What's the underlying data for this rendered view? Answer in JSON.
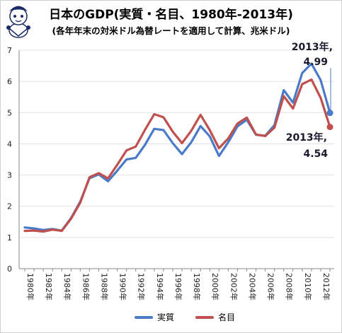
{
  "title": "日本のGDP(実質・名目、1980年-2013年)",
  "subtitle": "(各年年末の対米ドル為替レートを適用して計算、兆米ドル)",
  "colors": {
    "real": "#4a7bc8",
    "nominal": "#c0504d",
    "grid": "#e0e0e0",
    "axis": "#888888"
  },
  "chart_data": {
    "type": "line",
    "x": [
      1980,
      1981,
      1982,
      1983,
      1984,
      1985,
      1986,
      1987,
      1988,
      1989,
      1990,
      1991,
      1992,
      1993,
      1994,
      1995,
      1996,
      1997,
      1998,
      1999,
      2000,
      2001,
      2002,
      2003,
      2004,
      2005,
      2006,
      2007,
      2008,
      2009,
      2010,
      2011,
      2012,
      2013
    ],
    "x_tick_labels": [
      "1980年",
      "1982年",
      "1984年",
      "1986年",
      "1988年",
      "1990年",
      "1992年",
      "1994年",
      "1996年",
      "1998年",
      "2000年",
      "2002年",
      "2004年",
      "2006年",
      "2008年",
      "2010年",
      "2012年"
    ],
    "ylim": [
      0,
      7
    ],
    "y_ticks": [
      0,
      1,
      2,
      3,
      4,
      5,
      6,
      7
    ],
    "series": [
      {
        "name": "実質",
        "color": "#4a7bc8",
        "values": [
          1.32,
          1.29,
          1.24,
          1.27,
          1.22,
          1.62,
          2.15,
          2.9,
          3.02,
          2.8,
          3.14,
          3.5,
          3.55,
          3.97,
          4.48,
          4.44,
          4.02,
          3.67,
          4.05,
          4.57,
          4.24,
          3.61,
          4.05,
          4.56,
          4.77,
          4.29,
          4.26,
          4.6,
          5.72,
          5.32,
          6.27,
          6.57,
          6.04,
          4.99
        ]
      },
      {
        "name": "名目",
        "color": "#c0504d",
        "values": [
          1.21,
          1.22,
          1.19,
          1.25,
          1.21,
          1.6,
          2.12,
          2.93,
          3.06,
          2.89,
          3.33,
          3.79,
          3.91,
          4.45,
          4.95,
          4.85,
          4.39,
          4.02,
          4.42,
          4.93,
          4.44,
          3.86,
          4.17,
          4.65,
          4.84,
          4.3,
          4.25,
          4.52,
          5.53,
          5.13,
          5.91,
          6.06,
          5.47,
          4.54
        ]
      }
    ],
    "annotations": [
      {
        "year_label": "2013年,",
        "value_label": "4.99"
      },
      {
        "year_label": "2013年,",
        "value_label": "4.54"
      }
    ],
    "legend": {
      "placement": "bottom-center",
      "items": [
        "実質",
        "名目"
      ]
    }
  }
}
